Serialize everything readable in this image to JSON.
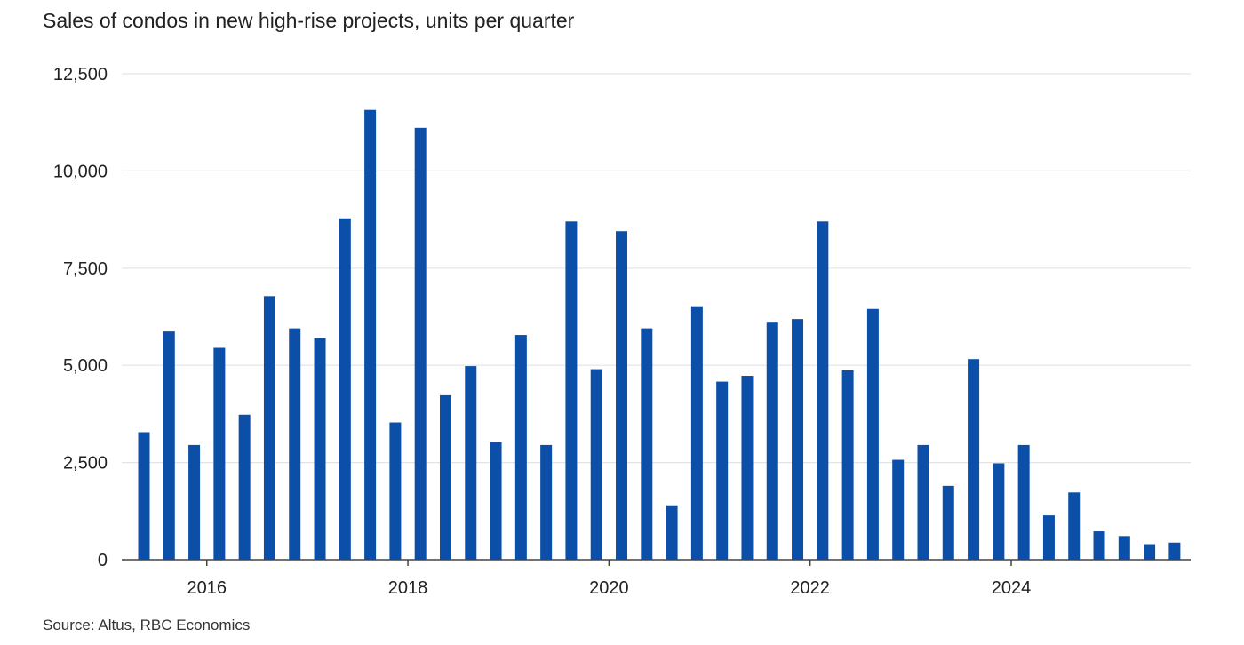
{
  "title": "Sales of condos in new high-rise projects, units per quarter",
  "source": "Source: Altus, RBC Economics",
  "colors": {
    "bar": "#0b4fa8",
    "grid": "#e3e3e3",
    "axis": "#444444",
    "text": "#222222"
  },
  "chart_data": {
    "type": "bar",
    "title": "Sales of condos in new high-rise projects, units per quarter",
    "xlabel": "",
    "ylabel": "",
    "ylim": [
      0,
      12500
    ],
    "y_ticks": [
      0,
      2500,
      5000,
      7500,
      10000,
      12500
    ],
    "y_tick_labels": [
      "0",
      "2,500",
      "5,000",
      "7,500",
      "10,000",
      "12,500"
    ],
    "x_tick_labels": [
      "2016",
      "2018",
      "2020",
      "2022",
      "2024"
    ],
    "grid": true,
    "categories": [
      "2015 Q2",
      "2015 Q3",
      "2015 Q4",
      "2016 Q1",
      "2016 Q2",
      "2016 Q3",
      "2016 Q4",
      "2017 Q1",
      "2017 Q2",
      "2017 Q3",
      "2017 Q4",
      "2018 Q1",
      "2018 Q2",
      "2018 Q3",
      "2018 Q4",
      "2019 Q1",
      "2019 Q2",
      "2019 Q3",
      "2019 Q4",
      "2020 Q1",
      "2020 Q2",
      "2020 Q3",
      "2020 Q4",
      "2021 Q1",
      "2021 Q2",
      "2021 Q3",
      "2021 Q4",
      "2022 Q1",
      "2022 Q2",
      "2022 Q3",
      "2022 Q4",
      "2023 Q1",
      "2023 Q2",
      "2023 Q3",
      "2023 Q4",
      "2024 Q1",
      "2024 Q2",
      "2024 Q3",
      "2024 Q4",
      "2025 Q1",
      "2025 Q2",
      "2025 Q3"
    ],
    "values": [
      3280,
      5870,
      2950,
      5450,
      3730,
      6780,
      5950,
      5700,
      8780,
      11570,
      3530,
      11110,
      4230,
      4980,
      3020,
      5780,
      2950,
      8700,
      4900,
      8450,
      5950,
      1400,
      6520,
      4580,
      4730,
      6120,
      6190,
      8700,
      4870,
      6450,
      2570,
      2950,
      1900,
      5160,
      2480,
      2950,
      1140,
      1730,
      730,
      610,
      400,
      440
    ]
  }
}
